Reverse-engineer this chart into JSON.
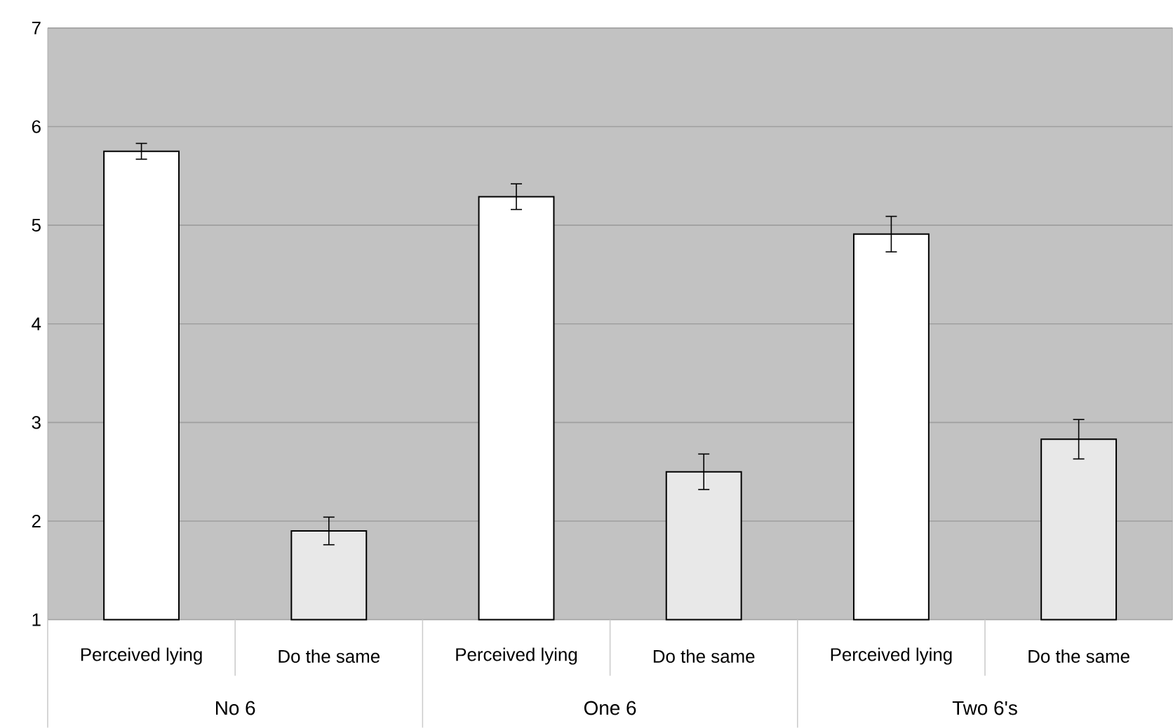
{
  "chart_data": {
    "type": "bar",
    "categories": [
      "No 6",
      "One 6",
      "Two 6's"
    ],
    "series": [
      {
        "name": "Perceived lying",
        "color": "#ffffff",
        "values": [
          5.75,
          5.29,
          4.91
        ],
        "errors": [
          0.08,
          0.13,
          0.18
        ]
      },
      {
        "name": "Do the same",
        "color": "#e8e8e8",
        "values": [
          1.9,
          2.5,
          2.83
        ],
        "errors": [
          0.14,
          0.18,
          0.2
        ]
      }
    ],
    "ylim": [
      1,
      7
    ],
    "yticks": [
      1,
      2,
      3,
      4,
      5,
      6,
      7
    ],
    "grid": "y",
    "legend": false
  }
}
